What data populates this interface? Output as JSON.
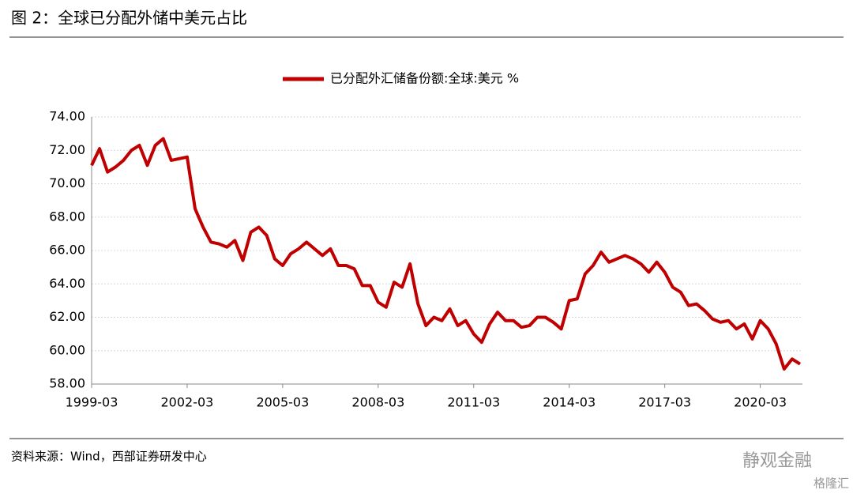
{
  "header": {
    "title": "图 2：全球已分配外储中美元占比"
  },
  "chart_data": {
    "type": "line",
    "categories": [
      "1999-03",
      null,
      null,
      null,
      null,
      null,
      null,
      null,
      null,
      null,
      null,
      null,
      "2002-03",
      null,
      null,
      null,
      null,
      null,
      null,
      null,
      null,
      null,
      null,
      null,
      "2005-03",
      null,
      null,
      null,
      null,
      null,
      null,
      null,
      null,
      null,
      null,
      null,
      "2008-03",
      null,
      null,
      null,
      null,
      null,
      null,
      null,
      null,
      null,
      null,
      null,
      "2011-03",
      null,
      null,
      null,
      null,
      null,
      null,
      null,
      null,
      null,
      null,
      null,
      "2014-03",
      null,
      null,
      null,
      null,
      null,
      null,
      null,
      null,
      null,
      null,
      null,
      "2017-03",
      null,
      null,
      null,
      null,
      null,
      null,
      null,
      null,
      null,
      null,
      null,
      "2020-03",
      null,
      null,
      null,
      null,
      null
    ],
    "series": [
      {
        "name": "已分配外汇储备份额:全球:美元 %",
        "color": "#c00000",
        "values": [
          71.1,
          72.1,
          70.7,
          71.0,
          71.4,
          72.0,
          72.3,
          71.1,
          72.3,
          72.7,
          71.4,
          71.5,
          71.6,
          68.5,
          67.4,
          66.5,
          66.4,
          66.2,
          66.6,
          65.4,
          67.1,
          67.4,
          66.9,
          65.5,
          65.1,
          65.8,
          66.1,
          66.5,
          66.1,
          65.7,
          66.1,
          65.1,
          65.1,
          64.9,
          63.9,
          63.9,
          62.9,
          62.6,
          64.1,
          63.8,
          65.2,
          62.8,
          61.5,
          62.0,
          61.8,
          62.5,
          61.5,
          61.8,
          61.0,
          60.5,
          61.6,
          62.3,
          61.8,
          61.8,
          61.4,
          61.5,
          62.0,
          62.0,
          61.7,
          61.3,
          63.0,
          63.1,
          64.6,
          65.1,
          65.9,
          65.3,
          65.5,
          65.7,
          65.5,
          65.2,
          64.7,
          65.3,
          64.7,
          63.8,
          63.5,
          62.7,
          62.8,
          62.4,
          61.9,
          61.7,
          61.8,
          61.3,
          61.6,
          60.7,
          61.8,
          61.3,
          60.4,
          58.9,
          59.5,
          59.2
        ]
      }
    ],
    "ylim": [
      58,
      74
    ],
    "yticks": [
      {
        "value": 58,
        "label": "58.00"
      },
      {
        "value": 60,
        "label": "60.00"
      },
      {
        "value": 62,
        "label": "62.00"
      },
      {
        "value": 64,
        "label": "64.00"
      },
      {
        "value": 66,
        "label": "66.00"
      },
      {
        "value": 68,
        "label": "68.00"
      },
      {
        "value": 70,
        "label": "70.00"
      },
      {
        "value": 72,
        "label": "72.00"
      },
      {
        "value": 74,
        "label": "74.00"
      }
    ],
    "grid": true,
    "legend": "top"
  },
  "footer": {
    "source": "资料来源：Wind，西部证券研发中心",
    "watermark": "静观金融",
    "logo": "格隆汇"
  }
}
